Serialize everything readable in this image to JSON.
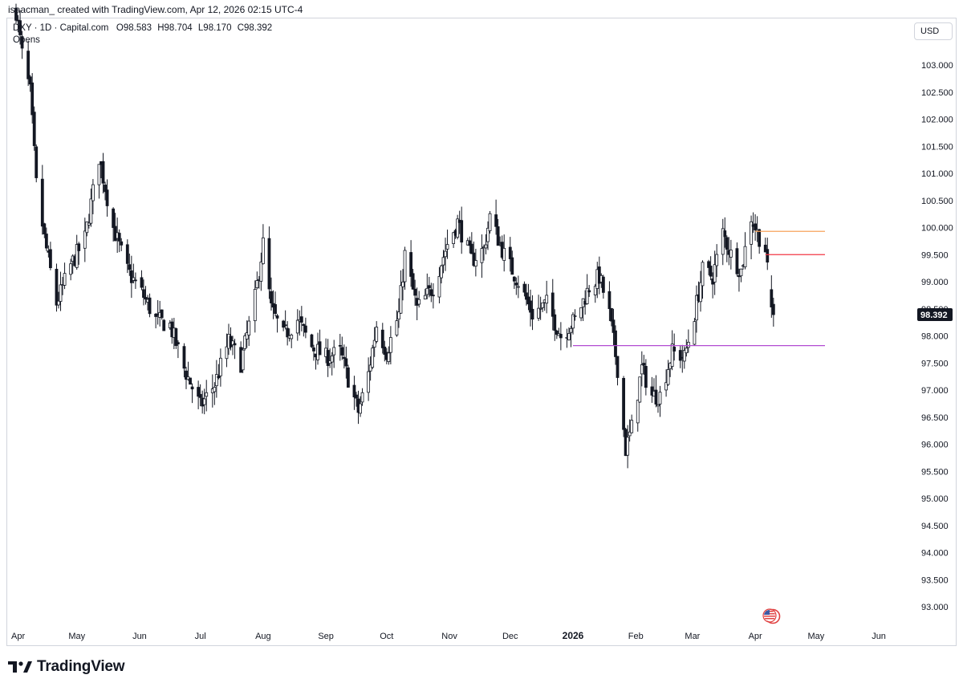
{
  "header": {
    "attribution": "isaacman_ created with TradingView.com, Apr 12, 2026 02:15 UTC-4"
  },
  "legend": {
    "symbol": "DXY · 1D · Capital.com",
    "open": "O98.583",
    "high": "H98.704",
    "low": "L98.170",
    "close": "C98.392",
    "study": "Opens"
  },
  "price_scale": {
    "currency": "USD",
    "last_price_label": "98.392",
    "last_price_color": "#131722"
  },
  "footer": {
    "brand": "TradingView",
    "icon": "tradingview-logo-icon"
  },
  "colors": {
    "candle": "#131722",
    "monthly_open_line": "#f7a35c",
    "weekly_open_line": "#f23645",
    "yearly_open_line": "#b24bd2"
  },
  "chart_data": {
    "type": "candlestick",
    "title": "DXY · 1D · Capital.com",
    "ylabel": "USD",
    "ylim": [
      92.75,
      103.65
    ],
    "y_ticks": [
      93.0,
      93.5,
      94.0,
      94.5,
      95.0,
      95.5,
      96.0,
      96.5,
      97.0,
      97.5,
      98.0,
      98.5,
      99.0,
      99.5,
      100.0,
      100.5,
      101.0,
      101.5,
      102.0,
      102.5,
      103.0
    ],
    "y_tick_labels": [
      "93.000",
      "93.500",
      "94.000",
      "94.500",
      "95.000",
      "95.500",
      "96.000",
      "96.500",
      "97.000",
      "97.500",
      "98.000",
      "98.500",
      "99.000",
      "99.500",
      "100.000",
      "100.500",
      "101.000",
      "101.500",
      "102.000",
      "102.500",
      "103.000"
    ],
    "x_ticks": [
      "Apr",
      "May",
      "Jun",
      "Jul",
      "Aug",
      "Sep",
      "Oct",
      "Nov",
      "Dec",
      "2026",
      "Feb",
      "Mar",
      "Apr",
      "May",
      "Jun"
    ],
    "x_tick_bold": [
      "2026"
    ],
    "x_tick_dates": [
      "2025-04-01",
      "2025-05-01",
      "2025-06-01",
      "2025-07-01",
      "2025-08-01",
      "2025-09-01",
      "2025-10-01",
      "2025-11-01",
      "2025-12-01",
      "2026-01-01",
      "2026-02-01",
      "2026-03-01",
      "2026-04-01",
      "2026-05-01",
      "2026-06-01"
    ],
    "last": {
      "open": 98.583,
      "high": 98.704,
      "low": 98.17,
      "close": 98.392
    },
    "opens_levels": [
      {
        "level": 99.93,
        "start": "2026-04-01",
        "color": "#f7a35c"
      },
      {
        "level": 99.5,
        "start": "2026-04-06",
        "color": "#f23645"
      },
      {
        "level": 97.82,
        "start": "2026-01-01",
        "color": "#b24bd2"
      }
    ],
    "anchors": [
      [
        "2025-04-01",
        104.0
      ],
      [
        "2025-04-04",
        103.2
      ],
      [
        "2025-04-08",
        102.5
      ],
      [
        "2025-04-11",
        100.8
      ],
      [
        "2025-04-15",
        99.8
      ],
      [
        "2025-04-21",
        98.6
      ],
      [
        "2025-04-28",
        99.3
      ],
      [
        "2025-05-05",
        99.8
      ],
      [
        "2025-05-12",
        101.3
      ],
      [
        "2025-05-19",
        100.0
      ],
      [
        "2025-05-26",
        99.2
      ],
      [
        "2025-06-02",
        98.8
      ],
      [
        "2025-06-09",
        98.3
      ],
      [
        "2025-06-16",
        98.2
      ],
      [
        "2025-06-23",
        97.4
      ],
      [
        "2025-07-01",
        96.7
      ],
      [
        "2025-07-08",
        97.1
      ],
      [
        "2025-07-15",
        97.9
      ],
      [
        "2025-07-21",
        97.5
      ],
      [
        "2025-07-28",
        98.7
      ],
      [
        "2025-08-01",
        99.7
      ],
      [
        "2025-08-05",
        98.5
      ],
      [
        "2025-08-11",
        98.0
      ],
      [
        "2025-08-18",
        98.3
      ],
      [
        "2025-08-25",
        97.8
      ],
      [
        "2025-09-01",
        97.6
      ],
      [
        "2025-09-08",
        97.7
      ],
      [
        "2025-09-17",
        96.6
      ],
      [
        "2025-09-22",
        97.3
      ],
      [
        "2025-09-26",
        98.2
      ],
      [
        "2025-10-01",
        97.7
      ],
      [
        "2025-10-07",
        98.4
      ],
      [
        "2025-10-10",
        99.5
      ],
      [
        "2025-10-16",
        98.5
      ],
      [
        "2025-10-24",
        98.9
      ],
      [
        "2025-10-31",
        99.7
      ],
      [
        "2025-11-05",
        100.1
      ],
      [
        "2025-11-12",
        99.4
      ],
      [
        "2025-11-18",
        99.6
      ],
      [
        "2025-11-21",
        100.2
      ],
      [
        "2025-11-28",
        99.5
      ],
      [
        "2025-12-05",
        99.0
      ],
      [
        "2025-12-12",
        98.4
      ],
      [
        "2025-12-19",
        98.6
      ],
      [
        "2025-12-26",
        98.0
      ],
      [
        "2026-01-02",
        98.3
      ],
      [
        "2026-01-09",
        98.9
      ],
      [
        "2026-01-14",
        99.1
      ],
      [
        "2026-01-19",
        98.4
      ],
      [
        "2026-01-23",
        97.4
      ],
      [
        "2026-01-27",
        95.9
      ],
      [
        "2026-01-30",
        96.3
      ],
      [
        "2026-02-04",
        97.4
      ],
      [
        "2026-02-09",
        96.9
      ],
      [
        "2026-02-13",
        96.9
      ],
      [
        "2026-02-19",
        97.7
      ],
      [
        "2026-02-25",
        97.6
      ],
      [
        "2026-03-02",
        98.4
      ],
      [
        "2026-03-06",
        99.2
      ],
      [
        "2026-03-11",
        99.1
      ],
      [
        "2026-03-16",
        99.9
      ],
      [
        "2026-03-20",
        99.5
      ],
      [
        "2026-03-25",
        99.2
      ],
      [
        "2026-03-30",
        100.2
      ],
      [
        "2026-04-02",
        99.9
      ],
      [
        "2026-04-06",
        99.6
      ],
      [
        "2026-04-08",
        98.8
      ],
      [
        "2026-04-10",
        98.39
      ]
    ],
    "gap_after": "2026-04-07"
  }
}
